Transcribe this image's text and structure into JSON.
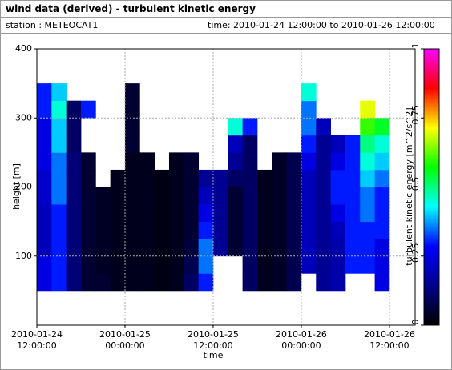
{
  "chart_data": {
    "type": "heatmap",
    "title": "wind data (derived) - turbulent kinetic energy",
    "station": "station : METEOCAT1",
    "time_span": "time: 2010-01-24 12:00:00 to 2010-01-26 12:00:00",
    "xlabel": "time",
    "ylabel": "height [m]",
    "colorbar_label": "turbulent kinetic energy [m^2/s^2]",
    "x": [
      "2010-01-24 12:00:00",
      "2010-01-24 14:00:00",
      "2010-01-24 16:00:00",
      "2010-01-24 18:00:00",
      "2010-01-24 20:00:00",
      "2010-01-24 22:00:00",
      "2010-01-25 00:00:00",
      "2010-01-25 02:00:00",
      "2010-01-25 04:00:00",
      "2010-01-25 06:00:00",
      "2010-01-25 08:00:00",
      "2010-01-25 10:00:00",
      "2010-01-25 12:00:00",
      "2010-01-25 14:00:00",
      "2010-01-25 16:00:00",
      "2010-01-25 18:00:00",
      "2010-01-25 20:00:00",
      "2010-01-25 22:00:00",
      "2010-01-26 00:00:00",
      "2010-01-26 02:00:00",
      "2010-01-26 04:00:00",
      "2010-01-26 06:00:00",
      "2010-01-26 08:00:00",
      "2010-01-26 10:00:00",
      "2010-01-26 12:00:00"
    ],
    "y": [
      25,
      50,
      75,
      100,
      125,
      150,
      175,
      200,
      225,
      250,
      275,
      300,
      325,
      350,
      375
    ],
    "values": [
      [
        null,
        0.25,
        0.25,
        0.2,
        0.2,
        0.2,
        0.22,
        0.22,
        0.25,
        0.25,
        0.25,
        0.3,
        0.3,
        null
      ],
      [
        null,
        0.3,
        0.3,
        0.3,
        0.3,
        0.3,
        0.35,
        0.35,
        0.35,
        0.4,
        0.4,
        0.45,
        0.4,
        null
      ],
      [
        null,
        0.12,
        0.12,
        0.12,
        0.12,
        0.12,
        0.12,
        0.12,
        0.12,
        0.1,
        0.1,
        0.1,
        null,
        null
      ],
      [
        null,
        0.05,
        0.05,
        0.05,
        0.05,
        0.05,
        0.05,
        0.05,
        0.05,
        null,
        null,
        0.3,
        null,
        null
      ],
      [
        null,
        0.05,
        0.04,
        0.04,
        0.04,
        0.04,
        0.04,
        null,
        null,
        null,
        null,
        null,
        null,
        null
      ],
      [
        null,
        0.03,
        0.03,
        0.03,
        0.03,
        0.03,
        0.03,
        0.03,
        null,
        null,
        null,
        null,
        null,
        null
      ],
      [
        null,
        0.03,
        0.03,
        0.03,
        0.03,
        0.03,
        0.03,
        0.03,
        0.03,
        0.05,
        0.05,
        0.05,
        0.05,
        null
      ],
      [
        null,
        0.03,
        0.03,
        0.03,
        0.03,
        0.03,
        0.03,
        0.03,
        0.03,
        null,
        null,
        null,
        null,
        null
      ],
      [
        null,
        0.02,
        0.02,
        0.02,
        0.02,
        0.02,
        0.02,
        0.02,
        null,
        null,
        null,
        null,
        null,
        null
      ],
      [
        null,
        0.03,
        0.03,
        0.03,
        0.03,
        0.03,
        0.03,
        0.03,
        0.03,
        null,
        null,
        null,
        null,
        null
      ],
      [
        null,
        0.1,
        0.08,
        0.06,
        0.05,
        0.05,
        0.05,
        0.05,
        0.05,
        null,
        null,
        null,
        null,
        null
      ],
      [
        null,
        0.3,
        0.35,
        0.35,
        0.3,
        0.25,
        0.2,
        0.15,
        null,
        null,
        null,
        null,
        null,
        null
      ],
      [
        null,
        null,
        null,
        0.15,
        0.15,
        0.15,
        0.15,
        0.15,
        null,
        null,
        null,
        null,
        null,
        null
      ],
      [
        null,
        null,
        null,
        0.05,
        0.05,
        0.05,
        0.05,
        0.1,
        0.15,
        0.2,
        0.45,
        null,
        null,
        null
      ],
      [
        null,
        0.1,
        0.1,
        0.1,
        0.1,
        0.1,
        0.1,
        0.1,
        0.1,
        0.1,
        0.3,
        null,
        null,
        null
      ],
      [
        null,
        0.03,
        0.03,
        0.03,
        0.03,
        0.03,
        0.03,
        0.03,
        null,
        null,
        null,
        null,
        null,
        null
      ],
      [
        null,
        0.04,
        0.04,
        0.04,
        0.04,
        0.04,
        0.04,
        0.04,
        0.04,
        null,
        null,
        null,
        null,
        null
      ],
      [
        null,
        0.08,
        0.08,
        0.08,
        0.08,
        0.08,
        0.08,
        0.08,
        0.08,
        null,
        null,
        null,
        null,
        null
      ],
      [
        null,
        null,
        0.2,
        0.2,
        0.2,
        0.2,
        0.2,
        0.2,
        0.25,
        0.3,
        0.35,
        0.35,
        0.45,
        null
      ],
      [
        null,
        0.15,
        0.15,
        0.15,
        0.15,
        0.15,
        0.15,
        0.15,
        0.15,
        0.15,
        0.2,
        null,
        null,
        null
      ],
      [
        null,
        0.18,
        0.18,
        0.18,
        0.2,
        0.25,
        0.3,
        0.3,
        0.25,
        0.2,
        null,
        null,
        null,
        null
      ],
      [
        null,
        null,
        0.3,
        0.3,
        0.3,
        0.3,
        0.3,
        0.3,
        0.3,
        0.3,
        null,
        null,
        null,
        null
      ],
      [
        null,
        null,
        0.3,
        0.3,
        0.3,
        0.35,
        0.35,
        0.4,
        0.45,
        0.5,
        0.6,
        0.7,
        null,
        null
      ],
      [
        null,
        0.25,
        0.25,
        0.25,
        0.3,
        0.3,
        0.3,
        0.35,
        0.4,
        0.45,
        0.55,
        null,
        null,
        null
      ]
    ],
    "xlim": [
      "2010-01-24 12:00:00",
      "2010-01-26 15:30:00"
    ],
    "xticks": [
      "2010-01-24 12:00:00",
      "2010-01-25 00:00:00",
      "2010-01-25 12:00:00",
      "2010-01-26 00:00:00",
      "2010-01-26 12:00:00"
    ],
    "ylim": [
      0,
      400
    ],
    "yticks": [
      100,
      200,
      300,
      400
    ],
    "clim": [
      0,
      1
    ],
    "cticks": [
      0,
      0.25,
      0.5,
      0.75,
      1
    ],
    "colorscale": [
      "#000000",
      "#00008c",
      "#0000ff",
      "#00ffff",
      "#00ff00",
      "#ffff00",
      "#ff0000",
      "#ff00ff"
    ],
    "grid": true
  }
}
